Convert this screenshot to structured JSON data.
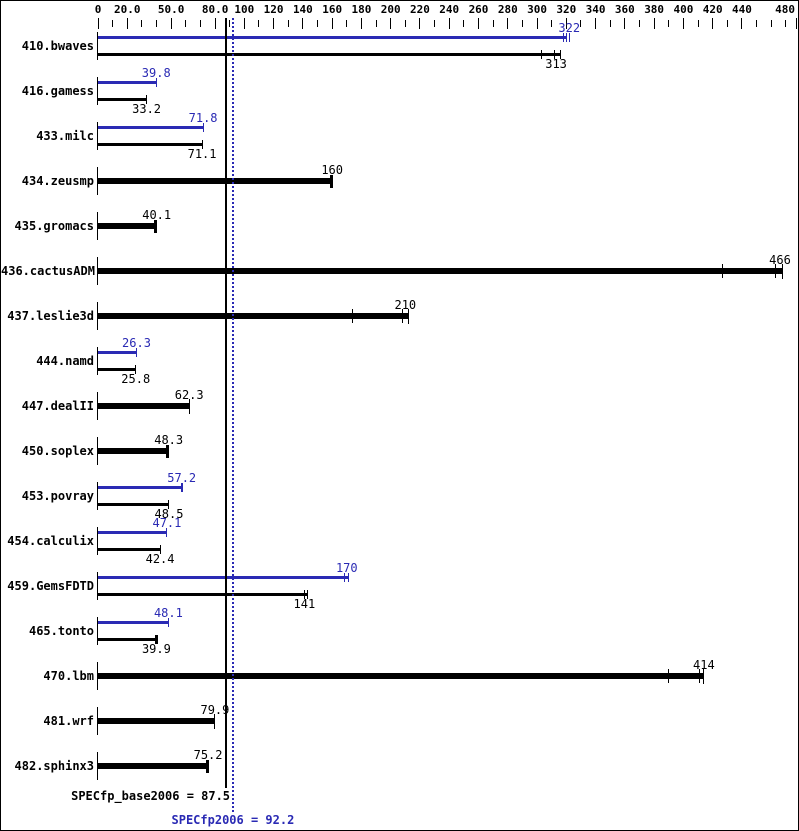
{
  "chart_data": {
    "type": "bar",
    "orientation": "horizontal",
    "legend_note": "blue bars = peak results, black bars = base results",
    "colors": {
      "base": "#000000",
      "peak": "#2a2ab4",
      "background": "#ffffff",
      "frame": "#000000"
    },
    "axis": {
      "min": 0,
      "max": 480,
      "minor_step": 10,
      "labeled_ticks": [
        {
          "v": 0,
          "t": "0"
        },
        {
          "v": 20,
          "t": "20.0"
        },
        {
          "v": 50,
          "t": "50.0"
        },
        {
          "v": 80,
          "t": "80.0"
        },
        {
          "v": 100,
          "t": "100"
        },
        {
          "v": 120,
          "t": "120"
        },
        {
          "v": 140,
          "t": "140"
        },
        {
          "v": 160,
          "t": "160"
        },
        {
          "v": 180,
          "t": "180"
        },
        {
          "v": 200,
          "t": "200"
        },
        {
          "v": 220,
          "t": "220"
        },
        {
          "v": 240,
          "t": "240"
        },
        {
          "v": 260,
          "t": "260"
        },
        {
          "v": 280,
          "t": "280"
        },
        {
          "v": 300,
          "t": "300"
        },
        {
          "v": 320,
          "t": "320"
        },
        {
          "v": 340,
          "t": "340"
        },
        {
          "v": 360,
          "t": "360"
        },
        {
          "v": 380,
          "t": "380"
        },
        {
          "v": 400,
          "t": "400"
        },
        {
          "v": 420,
          "t": "420"
        },
        {
          "v": 440,
          "t": "440"
        },
        {
          "v": 480,
          "t": "480"
        }
      ]
    },
    "reference_lines": [
      {
        "name": "base_mean",
        "label": "SPECfp_base2006 = 87.5",
        "value": 87.5,
        "style": "solid",
        "color": "#000000"
      },
      {
        "name": "peak_mean",
        "label": "SPECfp2006 = 92.2",
        "value": 92.2,
        "style": "dotted",
        "color": "#2a2ab4"
      }
    ],
    "benchmarks": [
      {
        "name": "410.bwaves",
        "peak": {
          "label": "322",
          "value": 322,
          "end": 320,
          "ticks": [
            318,
            322
          ]
        },
        "base": {
          "label": "313",
          "value": 313,
          "end": 316,
          "ticks": [
            303,
            312
          ]
        }
      },
      {
        "name": "416.gamess",
        "peak": {
          "label": "39.8",
          "value": 39.8
        },
        "base": {
          "label": "33.2",
          "value": 33.2
        }
      },
      {
        "name": "433.milc",
        "peak": {
          "label": "71.8",
          "value": 71.8
        },
        "base": {
          "label": "71.1",
          "value": 71.1
        }
      },
      {
        "name": "434.zeusmp",
        "peak": null,
        "base": {
          "label": "160",
          "value": 160,
          "cap": "thick"
        }
      },
      {
        "name": "435.gromacs",
        "peak": null,
        "base": {
          "label": "40.1",
          "value": 40.1,
          "cap": "thick"
        }
      },
      {
        "name": "436.cactusADM",
        "peak": null,
        "base": {
          "label": "466",
          "value": 466,
          "end": 468,
          "ticks": [
            427,
            463
          ],
          "cap": "thin"
        }
      },
      {
        "name": "437.leslie3d",
        "peak": null,
        "base": {
          "label": "210",
          "value": 210,
          "end": 212,
          "ticks": [
            174,
            208
          ],
          "cap": "thin"
        }
      },
      {
        "name": "444.namd",
        "peak": {
          "label": "26.3",
          "value": 26.3
        },
        "base": {
          "label": "25.8",
          "value": 25.8
        }
      },
      {
        "name": "447.dealII",
        "peak": null,
        "base": {
          "label": "62.3",
          "value": 62.3,
          "cap": "thin"
        }
      },
      {
        "name": "450.soplex",
        "peak": null,
        "base": {
          "label": "48.3",
          "value": 48.3,
          "cap": "thick"
        }
      },
      {
        "name": "453.povray",
        "peak": {
          "label": "57.2",
          "value": 57.2,
          "end": 58,
          "ticks": [
            56.8
          ]
        },
        "base": {
          "label": "48.5",
          "value": 48.5
        }
      },
      {
        "name": "454.calculix",
        "peak": {
          "label": "47.1",
          "value": 47.1
        },
        "base": {
          "label": "42.4",
          "value": 42.4
        }
      },
      {
        "name": "459.GemsFDTD",
        "peak": {
          "label": "170",
          "value": 170,
          "end": 171,
          "ticks": [
            168.5
          ]
        },
        "base": {
          "label": "141",
          "value": 141,
          "end": 143,
          "ticks": [
            141
          ]
        }
      },
      {
        "name": "465.tonto",
        "peak": {
          "label": "48.1",
          "value": 48.1
        },
        "base": {
          "label": "39.9",
          "value": 39.9,
          "cap": "thick"
        }
      },
      {
        "name": "470.lbm",
        "peak": null,
        "base": {
          "label": "414",
          "value": 414,
          "ticks": [
            390,
            411
          ],
          "cap": "thin"
        }
      },
      {
        "name": "481.wrf",
        "peak": null,
        "base": {
          "label": "79.9",
          "value": 79.9,
          "cap": "thin"
        }
      },
      {
        "name": "482.sphinx3",
        "peak": null,
        "base": {
          "label": "75.2",
          "value": 75.2,
          "cap": "thick"
        }
      }
    ]
  }
}
